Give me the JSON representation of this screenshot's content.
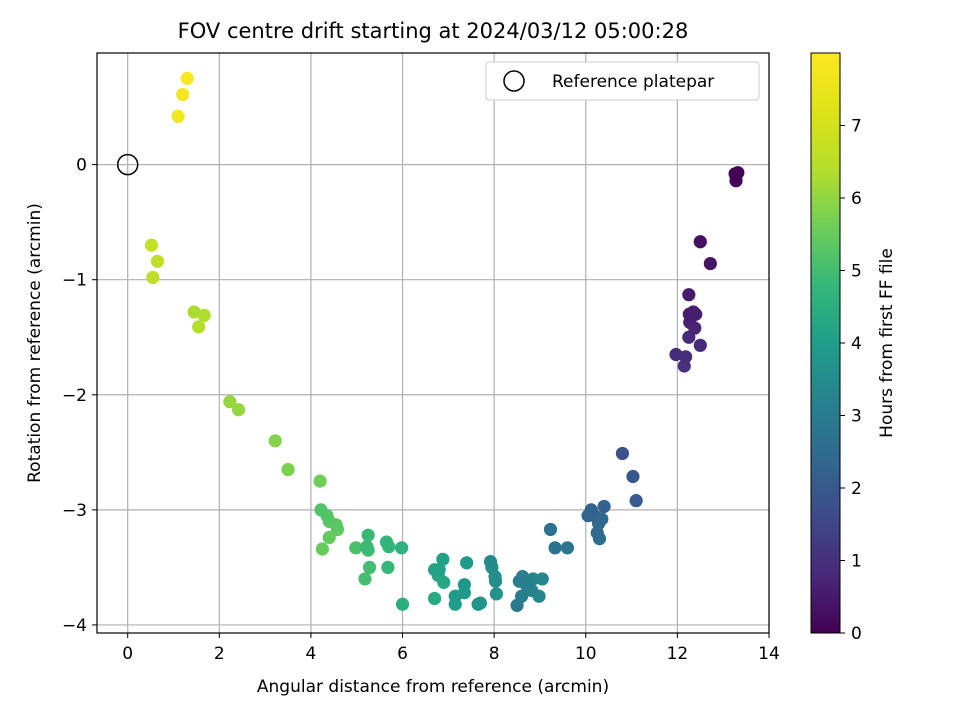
{
  "chart_data": {
    "type": "scatter",
    "title": "FOV centre drift starting at 2024/03/12 05:00:28",
    "xlabel": "Angular distance from reference (arcmin)",
    "ylabel": "Rotation from reference (arcmin)",
    "xlim": [
      -0.67,
      14.0
    ],
    "ylim": [
      -4.07,
      0.97
    ],
    "xticks": [
      0,
      2,
      4,
      6,
      8,
      10,
      12,
      14
    ],
    "yticks": [
      0,
      -1,
      -2,
      -3,
      -4
    ],
    "grid": true,
    "legend": {
      "placement": "top-right",
      "entries": [
        "Reference platepar"
      ]
    },
    "reference_point": {
      "x": 0,
      "y": 0
    },
    "colorbar": {
      "label": "Hours from first FF file",
      "colormap": "viridis",
      "range": [
        0,
        8.0
      ],
      "ticks": [
        0,
        1,
        2,
        3,
        4,
        5,
        6,
        7
      ]
    },
    "series": [
      {
        "values": [
          {
            "x": 13.32,
            "y": -0.07,
            "t": 0.02
          },
          {
            "x": 13.26,
            "y": -0.08,
            "t": 0.05
          },
          {
            "x": 13.28,
            "y": -0.14,
            "t": 0.1
          },
          {
            "x": 12.5,
            "y": -0.67,
            "t": 0.3
          },
          {
            "x": 12.72,
            "y": -0.86,
            "t": 0.4
          },
          {
            "x": 12.25,
            "y": -1.13,
            "t": 0.55
          },
          {
            "x": 12.26,
            "y": -1.3,
            "t": 0.6
          },
          {
            "x": 12.35,
            "y": -1.28,
            "t": 0.62
          },
          {
            "x": 12.4,
            "y": -1.3,
            "t": 0.65
          },
          {
            "x": 12.27,
            "y": -1.37,
            "t": 0.7
          },
          {
            "x": 12.38,
            "y": -1.42,
            "t": 0.75
          },
          {
            "x": 12.25,
            "y": -1.5,
            "t": 0.8
          },
          {
            "x": 12.5,
            "y": -1.57,
            "t": 0.85
          },
          {
            "x": 11.97,
            "y": -1.65,
            "t": 0.9
          },
          {
            "x": 12.18,
            "y": -1.67,
            "t": 0.95
          },
          {
            "x": 12.15,
            "y": -1.75,
            "t": 1.0
          },
          {
            "x": 10.8,
            "y": -2.51,
            "t": 1.8
          },
          {
            "x": 11.03,
            "y": -2.71,
            "t": 1.95
          },
          {
            "x": 11.1,
            "y": -2.92,
            "t": 2.05
          },
          {
            "x": 10.4,
            "y": -2.97,
            "t": 2.2
          },
          {
            "x": 10.12,
            "y": -3.0,
            "t": 2.25
          },
          {
            "x": 10.05,
            "y": -3.05,
            "t": 2.3
          },
          {
            "x": 10.22,
            "y": -3.06,
            "t": 2.35
          },
          {
            "x": 10.35,
            "y": -3.08,
            "t": 2.4
          },
          {
            "x": 10.28,
            "y": -3.12,
            "t": 2.45
          },
          {
            "x": 10.25,
            "y": -3.2,
            "t": 2.5
          },
          {
            "x": 10.3,
            "y": -3.25,
            "t": 2.55
          },
          {
            "x": 9.23,
            "y": -3.17,
            "t": 2.7
          },
          {
            "x": 9.33,
            "y": -3.33,
            "t": 2.75
          },
          {
            "x": 9.6,
            "y": -3.33,
            "t": 2.8
          },
          {
            "x": 8.5,
            "y": -3.83,
            "t": 2.95
          },
          {
            "x": 8.6,
            "y": -3.75,
            "t": 3.0
          },
          {
            "x": 8.62,
            "y": -3.58,
            "t": 3.05
          },
          {
            "x": 8.55,
            "y": -3.62,
            "t": 3.1
          },
          {
            "x": 8.7,
            "y": -3.65,
            "t": 3.15
          },
          {
            "x": 8.82,
            "y": -3.7,
            "t": 3.2
          },
          {
            "x": 8.85,
            "y": -3.6,
            "t": 3.25
          },
          {
            "x": 8.98,
            "y": -3.75,
            "t": 3.3
          },
          {
            "x": 9.05,
            "y": -3.6,
            "t": 3.35
          },
          {
            "x": 7.92,
            "y": -3.45,
            "t": 3.45
          },
          {
            "x": 7.95,
            "y": -3.5,
            "t": 3.5
          },
          {
            "x": 8.02,
            "y": -3.58,
            "t": 3.55
          },
          {
            "x": 8.03,
            "y": -3.62,
            "t": 3.6
          },
          {
            "x": 8.05,
            "y": -3.73,
            "t": 3.65
          },
          {
            "x": 7.7,
            "y": -3.81,
            "t": 3.7
          },
          {
            "x": 7.65,
            "y": -3.82,
            "t": 3.75
          },
          {
            "x": 7.35,
            "y": -3.65,
            "t": 3.8
          },
          {
            "x": 7.4,
            "y": -3.46,
            "t": 3.85
          },
          {
            "x": 7.35,
            "y": -3.72,
            "t": 3.9
          },
          {
            "x": 7.15,
            "y": -3.75,
            "t": 3.95
          },
          {
            "x": 7.15,
            "y": -3.82,
            "t": 4.0
          },
          {
            "x": 6.88,
            "y": -3.43,
            "t": 4.1
          },
          {
            "x": 6.8,
            "y": -3.52,
            "t": 4.15
          },
          {
            "x": 6.7,
            "y": -3.52,
            "t": 4.2
          },
          {
            "x": 6.78,
            "y": -3.57,
            "t": 4.25
          },
          {
            "x": 6.9,
            "y": -3.63,
            "t": 4.3
          },
          {
            "x": 6.7,
            "y": -3.77,
            "t": 4.35
          },
          {
            "x": 6.0,
            "y": -3.82,
            "t": 4.5
          },
          {
            "x": 5.98,
            "y": -3.33,
            "t": 4.6
          },
          {
            "x": 5.65,
            "y": -3.28,
            "t": 4.7
          },
          {
            "x": 5.7,
            "y": -3.32,
            "t": 4.75
          },
          {
            "x": 5.68,
            "y": -3.5,
            "t": 4.8
          },
          {
            "x": 5.25,
            "y": -3.22,
            "t": 4.85
          },
          {
            "x": 5.22,
            "y": -3.32,
            "t": 4.9
          },
          {
            "x": 5.25,
            "y": -3.35,
            "t": 4.95
          },
          {
            "x": 5.28,
            "y": -3.5,
            "t": 5.0
          },
          {
            "x": 5.18,
            "y": -3.6,
            "t": 5.05
          },
          {
            "x": 4.98,
            "y": -3.33,
            "t": 5.1
          },
          {
            "x": 4.22,
            "y": -3.0,
            "t": 5.2
          },
          {
            "x": 4.35,
            "y": -3.05,
            "t": 5.25
          },
          {
            "x": 4.4,
            "y": -3.1,
            "t": 5.3
          },
          {
            "x": 4.55,
            "y": -3.13,
            "t": 5.35
          },
          {
            "x": 4.58,
            "y": -3.17,
            "t": 5.4
          },
          {
            "x": 4.4,
            "y": -3.24,
            "t": 5.45
          },
          {
            "x": 4.25,
            "y": -3.34,
            "t": 5.5
          },
          {
            "x": 4.2,
            "y": -2.75,
            "t": 5.6
          },
          {
            "x": 3.5,
            "y": -2.65,
            "t": 5.75
          },
          {
            "x": 3.22,
            "y": -2.4,
            "t": 5.85
          },
          {
            "x": 2.42,
            "y": -2.13,
            "t": 6.0
          },
          {
            "x": 2.23,
            "y": -2.06,
            "t": 6.05
          },
          {
            "x": 1.45,
            "y": -1.28,
            "t": 6.3
          },
          {
            "x": 1.67,
            "y": -1.31,
            "t": 6.35
          },
          {
            "x": 1.55,
            "y": -1.41,
            "t": 6.4
          },
          {
            "x": 0.55,
            "y": -0.98,
            "t": 6.55
          },
          {
            "x": 0.65,
            "y": -0.84,
            "t": 6.6
          },
          {
            "x": 0.52,
            "y": -0.7,
            "t": 6.65
          },
          {
            "x": 1.1,
            "y": 0.42,
            "t": 7.7
          },
          {
            "x": 1.2,
            "y": 0.61,
            "t": 7.8
          },
          {
            "x": 1.3,
            "y": 0.75,
            "t": 7.9
          }
        ]
      }
    ]
  }
}
